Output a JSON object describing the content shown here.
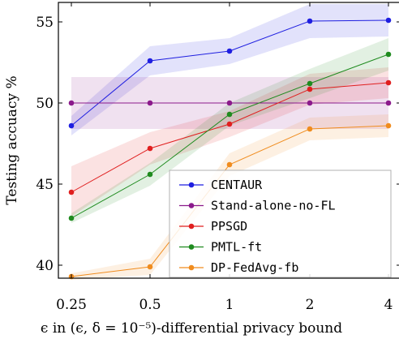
{
  "chart_data": {
    "type": "line",
    "x": [
      "0.25",
      "0.5",
      "1",
      "2",
      "4"
    ],
    "xlabel": "ϵ in (ϵ, δ = 10⁻⁵)-differential privacy bound",
    "ylabel": "Testing accuacy %",
    "ylim": [
      39.2,
      56.2
    ],
    "yticks": [
      40,
      45,
      50,
      55
    ],
    "grid": false,
    "legend_position": "bottom-right",
    "series": [
      {
        "name": "CENTAUR",
        "color": "#1f1fe0",
        "values": [
          48.6,
          52.6,
          53.2,
          55.05,
          55.1
        ],
        "lower": [
          48.0,
          51.7,
          52.4,
          54.0,
          54.1
        ],
        "upper": [
          49.2,
          53.5,
          54.0,
          56.1,
          56.1
        ]
      },
      {
        "name": "Stand-alone-no-FL",
        "color": "#8b1a8b",
        "values": [
          50.0,
          50.0,
          50.0,
          50.0,
          50.0
        ],
        "lower": [
          48.4,
          48.4,
          48.4,
          48.4,
          48.4
        ],
        "upper": [
          51.6,
          51.6,
          51.6,
          51.6,
          51.6
        ]
      },
      {
        "name": "PPSGD",
        "color": "#e01f1f",
        "values": [
          44.5,
          47.2,
          48.7,
          50.85,
          51.25
        ],
        "lower": [
          43.0,
          46.2,
          47.9,
          49.9,
          50.3
        ],
        "upper": [
          46.1,
          48.2,
          49.5,
          51.8,
          52.2
        ]
      },
      {
        "name": "PMTL-ft",
        "color": "#1f8b1f",
        "values": [
          42.9,
          45.6,
          49.3,
          51.2,
          53.0
        ],
        "lower": [
          42.6,
          44.9,
          48.6,
          50.3,
          52.0
        ],
        "upper": [
          43.2,
          46.3,
          50.0,
          52.1,
          54.0
        ]
      },
      {
        "name": "DP-FedAvg-fb",
        "color": "#f08c1e",
        "values": [
          39.3,
          39.9,
          46.2,
          48.4,
          48.6
        ],
        "lower": [
          39.1,
          39.4,
          45.5,
          47.7,
          47.9
        ],
        "upper": [
          39.5,
          40.4,
          46.9,
          49.1,
          49.3
        ]
      }
    ]
  }
}
